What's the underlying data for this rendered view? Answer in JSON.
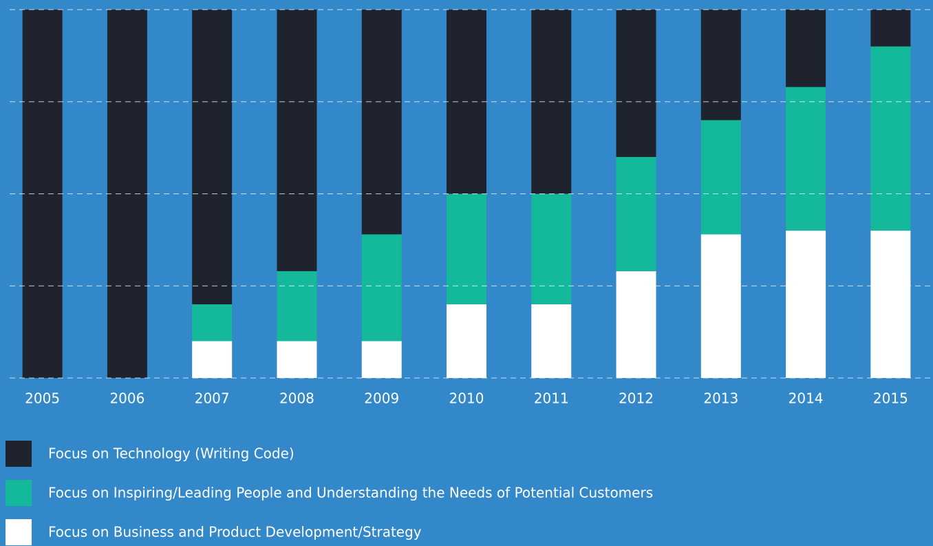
{
  "chart_data": {
    "type": "stacked_bar",
    "categories": [
      "2005",
      "2006",
      "2007",
      "2008",
      "2009",
      "2010",
      "2011",
      "2012",
      "2013",
      "2014",
      "2015"
    ],
    "series": [
      {
        "name": "Focus on Business and Product Development/Strategy",
        "color": "#ffffff",
        "values": [
          0,
          0,
          10,
          10,
          10,
          20,
          20,
          29,
          39,
          40,
          40
        ]
      },
      {
        "name": "Focus on Inspiring/Leading People and Understanding the Needs of Potential Customers",
        "color": "#14b89a",
        "values": [
          0,
          0,
          10,
          19,
          29,
          30,
          30,
          31,
          31,
          39,
          50
        ]
      },
      {
        "name": "Focus on Technology (Writing Code)",
        "color": "#1e232d",
        "values": [
          100,
          100,
          80,
          71,
          61,
          50,
          50,
          40,
          30,
          21,
          10
        ]
      }
    ],
    "ylim": [
      0,
      100
    ],
    "yticks": [
      0,
      25,
      50,
      75,
      100
    ],
    "grid": true
  }
}
